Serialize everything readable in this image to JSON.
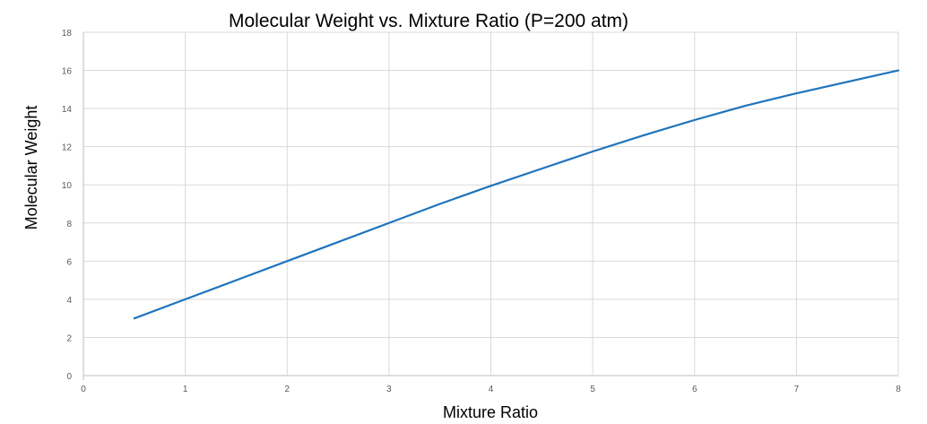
{
  "chart_data": {
    "type": "line",
    "title": "Molecular Weight vs. Mixture Ratio (P=200 atm)",
    "xlabel": "Mixture Ratio",
    "ylabel": "Molecular Weight",
    "xlim": [
      0,
      8
    ],
    "ylim": [
      0,
      18
    ],
    "x_ticks": [
      "0",
      "1",
      "2",
      "3",
      "4",
      "5",
      "6",
      "7",
      "8"
    ],
    "y_ticks": [
      "0",
      "2",
      "4",
      "6",
      "8",
      "10",
      "12",
      "14",
      "16",
      "18"
    ],
    "grid": true,
    "legend": "none",
    "colors": {
      "series": "#1f74bc",
      "grid": "#d9d9d9",
      "text": "#595959",
      "title": "#000000"
    },
    "series": [
      {
        "x": [
          0.5,
          1,
          1.5,
          2,
          2.5,
          3,
          3.5,
          4,
          4.5,
          5,
          5.5,
          6,
          6.5,
          7,
          7.5,
          8
        ],
        "y": [
          3.0,
          4.0,
          5.0,
          6.0,
          7.0,
          8.0,
          9.0,
          9.95,
          10.85,
          11.75,
          12.6,
          13.4,
          14.15,
          14.8,
          15.4,
          16.0
        ]
      }
    ]
  }
}
